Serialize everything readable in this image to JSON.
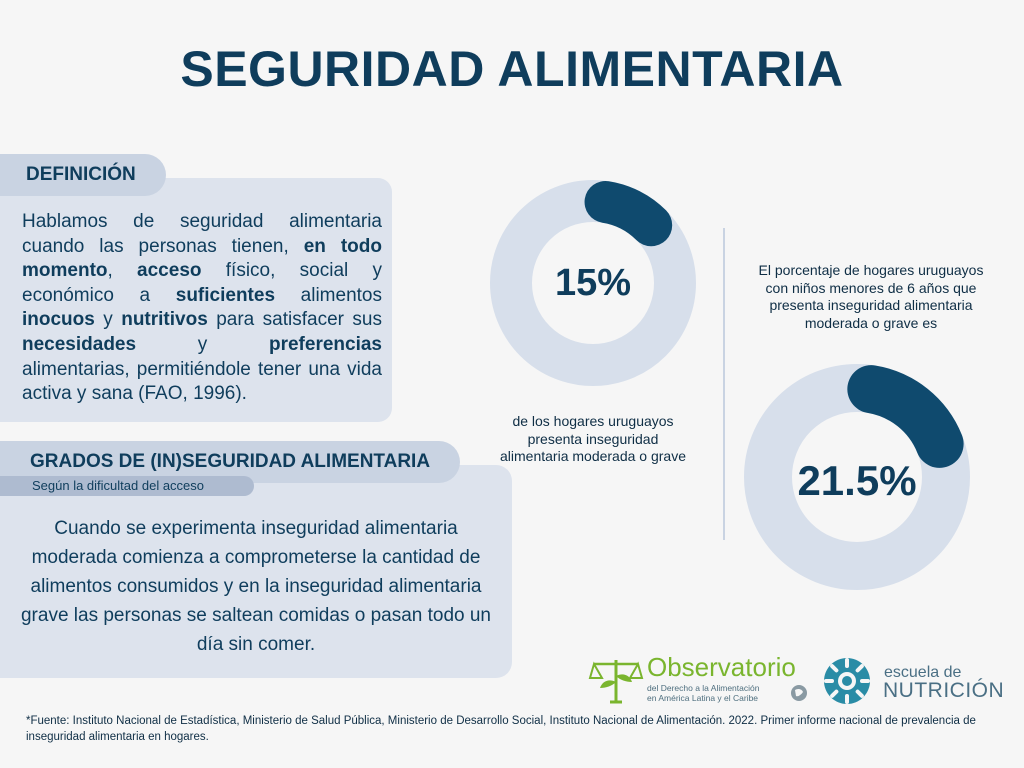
{
  "title": "SEGURIDAD ALIMENTARIA",
  "definicion": {
    "label": "DEFINICIÓN",
    "paragraph": [
      {
        "t": "Hablamos de seguridad alimentaria cuando las personas tienen, ",
        "b": false
      },
      {
        "t": "en todo momento",
        "b": true
      },
      {
        "t": ", ",
        "b": false
      },
      {
        "t": "acceso",
        "b": true
      },
      {
        "t": " físico, social y económico a ",
        "b": false
      },
      {
        "t": "suficientes",
        "b": true
      },
      {
        "t": " alimentos ",
        "b": false
      },
      {
        "t": "inocuos",
        "b": true
      },
      {
        "t": " y ",
        "b": false
      },
      {
        "t": "nutritivos",
        "b": true
      },
      {
        "t": " para satisfacer sus ",
        "b": false
      },
      {
        "t": "necesidades",
        "b": true
      },
      {
        "t": " y ",
        "b": false
      },
      {
        "t": "preferencias",
        "b": true
      },
      {
        "t": " alimentarias, permitiéndole tener una vida activa y sana (FAO, 1996).",
        "b": false
      }
    ]
  },
  "grados": {
    "label": "GRADOS DE (IN)SEGURIDAD ALIMENTARIA",
    "sublabel": "Según la dificultad del acceso",
    "text": "Cuando se experimenta inseguridad alimentaria moderada comienza a comprometerse la cantidad de alimentos consumidos y en la inseguridad alimentaria grave las personas se saltean comidas o pasan todo un día sin comer."
  },
  "stats": [
    {
      "value_label": "15%",
      "fraction": 0.15,
      "caption": "de los hogares uruguayos presenta inseguridad alimentaria moderada o grave"
    },
    {
      "value_label": "21.5%",
      "fraction": 0.215,
      "caption": "El porcentaje de hogares uruguayos con niños menores de 6 años que presenta inseguridad alimentaria moderada o grave es"
    }
  ],
  "logos": {
    "observatorio_title": "Observatorio",
    "observatorio_sub1": "del Derecho a la Alimentación",
    "observatorio_sub2": "en América Latina y el Caribe",
    "escuela_top": "escuela de",
    "escuela_bottom": "NUTRICIÓN"
  },
  "footer": "*Fuente: Instituto Nacional de Estadística, Ministerio de Salud Pública, Ministerio de Desarrollo Social, Instituto Nacional de Alimentación. 2022. Primer informe nacional de prevalencia de inseguridad alimentaria en hogares.",
  "colors": {
    "primary": "#0f3d5c",
    "donut_track": "#d7dfeb",
    "donut_fill": "#0f4a6e",
    "panel": "#dde3ed",
    "pill": "#c9d3e2",
    "logo_green": "#7ab52e",
    "logo_teal": "#2a8ca6"
  }
}
